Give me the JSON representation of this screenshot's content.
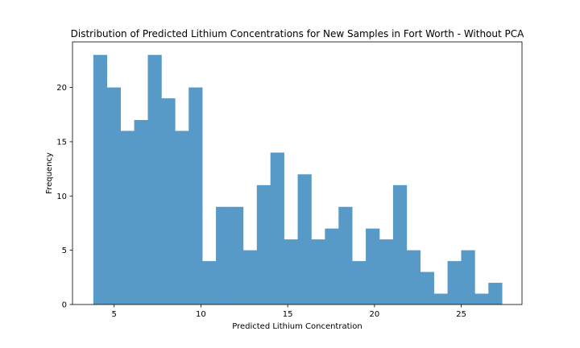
{
  "chart_data": {
    "type": "bar",
    "title": "Distribution of Predicted Lithium Concentrations for New Samples in Fort Worth - Without PCA",
    "xlabel": "Predicted Lithium Concentration",
    "ylabel": "Frequency",
    "xlim": [
      2.6,
      28.5
    ],
    "ylim": [
      0,
      24.2
    ],
    "xticks": [
      5,
      10,
      15,
      20,
      25
    ],
    "yticks": [
      0,
      5,
      10,
      15,
      20
    ],
    "bin_start": 3.8,
    "bin_width": 0.785,
    "values": [
      23,
      20,
      16,
      17,
      23,
      19,
      16,
      20,
      4,
      9,
      9,
      5,
      11,
      14,
      6,
      12,
      6,
      7,
      9,
      4,
      7,
      6,
      11,
      5,
      3,
      1,
      4,
      5,
      1,
      2
    ],
    "bar_color": "#5799c7",
    "grid": false
  }
}
